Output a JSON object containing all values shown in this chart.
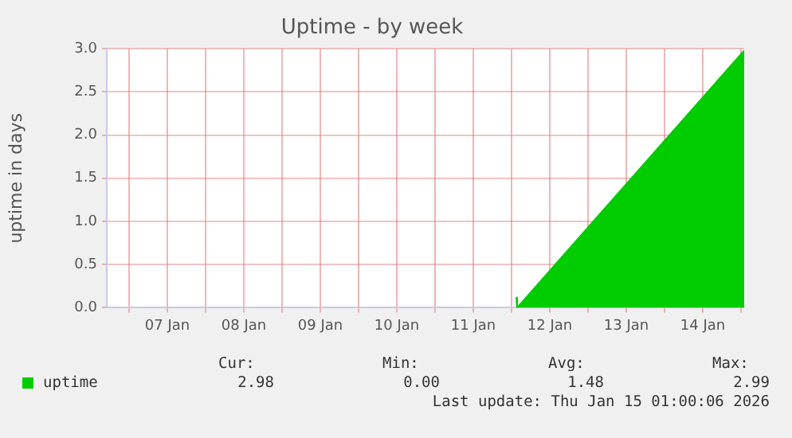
{
  "chart_data": {
    "type": "area",
    "title": "Uptime - by week",
    "ylabel": "uptime in days",
    "x": [
      "2026-01-12T01:30",
      "2026-01-12T01:45",
      "2026-01-15T01:00"
    ],
    "series": [
      {
        "name": "uptime",
        "color": "#00cc00",
        "values": [
          0.12,
          0.0,
          2.98
        ]
      }
    ],
    "xlim": [
      "2026-01-06T17:00",
      "2026-01-15T01:00"
    ],
    "xticks": [
      {
        "value": "2026-01-07T00:00",
        "label": null
      },
      {
        "value": "2026-01-07T12:00",
        "label": "07 Jan"
      },
      {
        "value": "2026-01-08T00:00",
        "label": null
      },
      {
        "value": "2026-01-08T12:00",
        "label": "08 Jan"
      },
      {
        "value": "2026-01-09T00:00",
        "label": null
      },
      {
        "value": "2026-01-09T12:00",
        "label": "09 Jan"
      },
      {
        "value": "2026-01-10T00:00",
        "label": null
      },
      {
        "value": "2026-01-10T12:00",
        "label": "10 Jan"
      },
      {
        "value": "2026-01-11T00:00",
        "label": null
      },
      {
        "value": "2026-01-11T12:00",
        "label": "11 Jan"
      },
      {
        "value": "2026-01-12T00:00",
        "label": null
      },
      {
        "value": "2026-01-12T12:00",
        "label": "12 Jan"
      },
      {
        "value": "2026-01-13T00:00",
        "label": null
      },
      {
        "value": "2026-01-13T12:00",
        "label": "13 Jan"
      },
      {
        "value": "2026-01-14T00:00",
        "label": null
      },
      {
        "value": "2026-01-14T12:00",
        "label": "14 Jan"
      },
      {
        "value": "2026-01-15T00:00",
        "label": null
      }
    ],
    "ylim": [
      0,
      3
    ],
    "yticks": [
      {
        "value": 0,
        "label": "0.0"
      },
      {
        "value": 0.5,
        "label": "0.5"
      },
      {
        "value": 1,
        "label": "1.0"
      },
      {
        "value": 1.5,
        "label": "1.5"
      },
      {
        "value": 2,
        "label": "2.0"
      },
      {
        "value": 2.5,
        "label": "2.5"
      },
      {
        "value": 3,
        "label": "3.0"
      }
    ],
    "grid": true,
    "legend": "bottom left",
    "marker": "none",
    "annotations": [
      "Cur:",
      "Min:",
      "Avg:",
      "Max:",
      "2.98",
      "0.00",
      "1.48",
      "2.99",
      "Last update: Thu Jan 15 01:00:06 2026"
    ]
  }
}
